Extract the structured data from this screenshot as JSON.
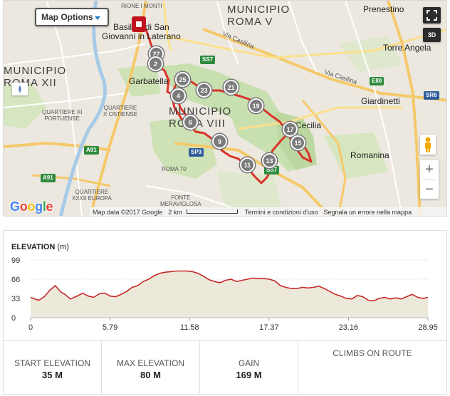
{
  "map": {
    "options_label": "Map Options",
    "labels": {
      "municipio_v": "MUNICIPIO\nROMA V",
      "municipio_viii": "MUNICIPIO\nROMA VIII",
      "municipio_xii": "MUNICIPIO\nROMA XII",
      "rione_monti": "RIONE I MONTI",
      "basilica": "Basilica di San\nGiovanni in Laterano",
      "garbatella": "Garbatella",
      "prenestino": "Prenestino",
      "torre_angela": "Torre Angela",
      "giardinetti": "Giardinetti",
      "romanina": "Romanina",
      "cecilia": "Cecilia",
      "quartiere_portuense": "QUARTIERE XI\nPORTUENSE",
      "quartiere_ostiense": "QUARTIERE\nX OSTIENSE",
      "quartiere_eur": "QUARTIERE\nXXXII EUROPA",
      "roma70": "ROMA 70",
      "fonte_meraviglosa": "FONTE\nMERAVIGLOSA",
      "via_casilina": "Via Casilina",
      "via_casilina_2": "Via Casilina"
    },
    "shields": {
      "ss7": "SS7",
      "e80": "E80",
      "sr6": "SR6",
      "sp3": "SP3",
      "a91a": "A91",
      "a91b": "A91",
      "ss7b": "SS7"
    },
    "markers": [
      "27",
      "2",
      "25",
      "4",
      "23",
      "21",
      "19",
      "6",
      "9",
      "17",
      "15",
      "11",
      "13"
    ],
    "route_color": "#d9342b",
    "google": "Google",
    "footer": {
      "map_data": "Map data ©2017 Google",
      "scale": "2 km",
      "terms": "Termini e condizioni d'uso",
      "report": "Segnala un errore nella mappa"
    },
    "btn_3d": "3D",
    "zoom_in": "+",
    "zoom_out": "−"
  },
  "elevation": {
    "title": "ELEVATION",
    "unit": "(m)",
    "chart_data": {
      "type": "area",
      "x_ticks": [
        "0",
        "5.79",
        "11.58",
        "17.37",
        "23.16",
        "28.95"
      ],
      "y_ticks": [
        "99",
        "66",
        "33",
        "0"
      ],
      "xlim": [
        0,
        28.95
      ],
      "ylim": [
        0,
        99
      ],
      "line_color": "#c62828",
      "fill_color": "#ece9da",
      "series": [
        {
          "x": [
            0,
            0.3,
            0.6,
            1.0,
            1.4,
            1.8,
            2.2,
            2.5,
            2.9,
            3.3,
            3.8,
            4.2,
            4.6,
            5.0,
            5.4,
            5.8,
            6.2,
            6.6,
            7.0,
            7.4,
            7.8,
            8.2,
            8.6,
            9.0,
            9.4,
            9.8,
            10.2,
            10.6,
            11.0,
            11.4,
            11.8,
            12.2,
            12.6,
            13.0,
            13.4,
            13.8,
            14.2,
            14.6,
            15.0,
            15.4,
            15.8,
            16.2,
            16.6,
            17.0,
            17.4,
            17.8,
            18.2,
            18.6,
            19.0,
            19.4,
            19.8,
            20.2,
            20.6,
            21.0,
            21.4,
            21.8,
            22.2,
            22.6,
            23.0,
            23.4,
            23.8,
            24.2,
            24.6,
            25.0,
            25.4,
            25.8,
            26.2,
            26.6,
            27.0,
            27.4,
            27.8,
            28.2,
            28.6,
            28.95
          ],
          "y": [
            35,
            32,
            30,
            36,
            47,
            55,
            44,
            40,
            32,
            36,
            42,
            37,
            35,
            41,
            42,
            37,
            36,
            40,
            45,
            52,
            55,
            62,
            66,
            72,
            76,
            78,
            79,
            80,
            80,
            80,
            79,
            76,
            71,
            65,
            62,
            60,
            64,
            66,
            62,
            64,
            66,
            68,
            67,
            67,
            66,
            63,
            55,
            52,
            50,
            50,
            52,
            51,
            52,
            54,
            50,
            45,
            40,
            37,
            33,
            32,
            38,
            36,
            30,
            29,
            33,
            35,
            32,
            34,
            32,
            36,
            40,
            35,
            33,
            35
          ]
        }
      ]
    }
  },
  "stats": [
    {
      "label": "START ELEVATION",
      "value": "35 M"
    },
    {
      "label": "MAX ELEVATION",
      "value": "80 M"
    },
    {
      "label": "GAIN",
      "value": "169 M"
    },
    {
      "label": "CLIMBS ON ROUTE",
      "value": ""
    }
  ]
}
